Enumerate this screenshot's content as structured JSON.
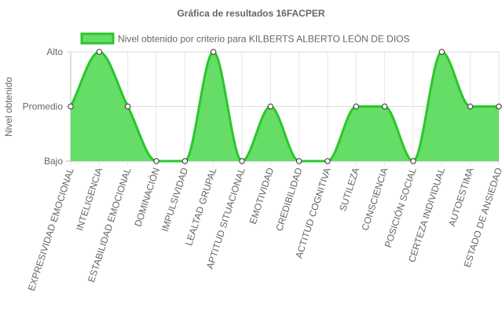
{
  "chart_data": {
    "type": "area",
    "title": "Gráfica de resultados 16FACPER",
    "ylabel": "Nivel obtenido",
    "xlabel": "",
    "y_levels": [
      "Bajo",
      "Promedio",
      "Alto"
    ],
    "ylim": [
      0,
      2
    ],
    "grid": true,
    "legend_position": "top",
    "categories": [
      "EXPRESIVIDAD EMOCIONAL",
      "INTELIGENCIA",
      "ESTABILIDAD EMOCIONAL",
      "DOMINACIÓN",
      "IMPULSIVIDAD",
      "LEALTAD GRUPAL",
      "APTITUD SITUACIONAL",
      "EMOTIVIDAD",
      "CREDIBILIDAD",
      "ACTITUD COGNITIVA",
      "SUTILEZA",
      "CONSCIENCIA",
      "POSICIÓN SOCIAL",
      "CERTEZA INDIVIDUAL",
      "AUTOESTIMA",
      "ESTADO DE ANSIEDAD"
    ],
    "series": [
      {
        "name": "Nivel obtenido por criterio para KILBERTS ALBERTO LEÓN DE DIOS",
        "values": [
          1,
          2,
          1,
          0,
          0,
          2,
          0,
          1,
          0,
          0,
          1,
          1,
          0,
          2,
          1,
          1
        ],
        "color": "#2ac72a",
        "fill": "#66dd66"
      }
    ]
  }
}
